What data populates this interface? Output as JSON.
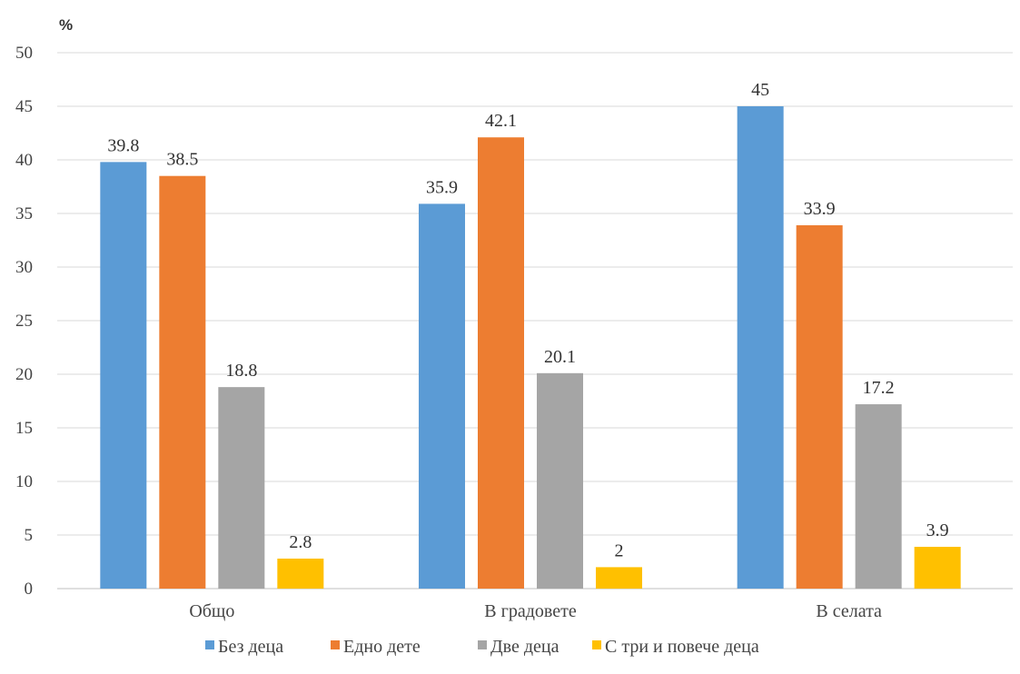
{
  "chart_data": {
    "type": "bar",
    "unit_label": "%",
    "categories": [
      "Общо",
      "В градовете",
      "В селата"
    ],
    "series": [
      {
        "name": "Без деца",
        "values": [
          39.8,
          35.9,
          45
        ],
        "color": "#5b9bd5"
      },
      {
        "name": "Едно дете",
        "values": [
          38.5,
          42.1,
          33.9
        ],
        "color": "#ed7d31"
      },
      {
        "name": "Две деца",
        "values": [
          18.8,
          20.1,
          17.2
        ],
        "color": "#a5a5a5"
      },
      {
        "name": "С три и повече деца",
        "values": [
          2.8,
          2,
          3.9
        ],
        "color": "#ffc000"
      }
    ],
    "ylim": [
      0,
      50
    ],
    "yticks": [
      0,
      5,
      10,
      15,
      20,
      25,
      30,
      35,
      40,
      45,
      50
    ],
    "grid": true,
    "legend_position": "bottom",
    "data_labels": true
  }
}
